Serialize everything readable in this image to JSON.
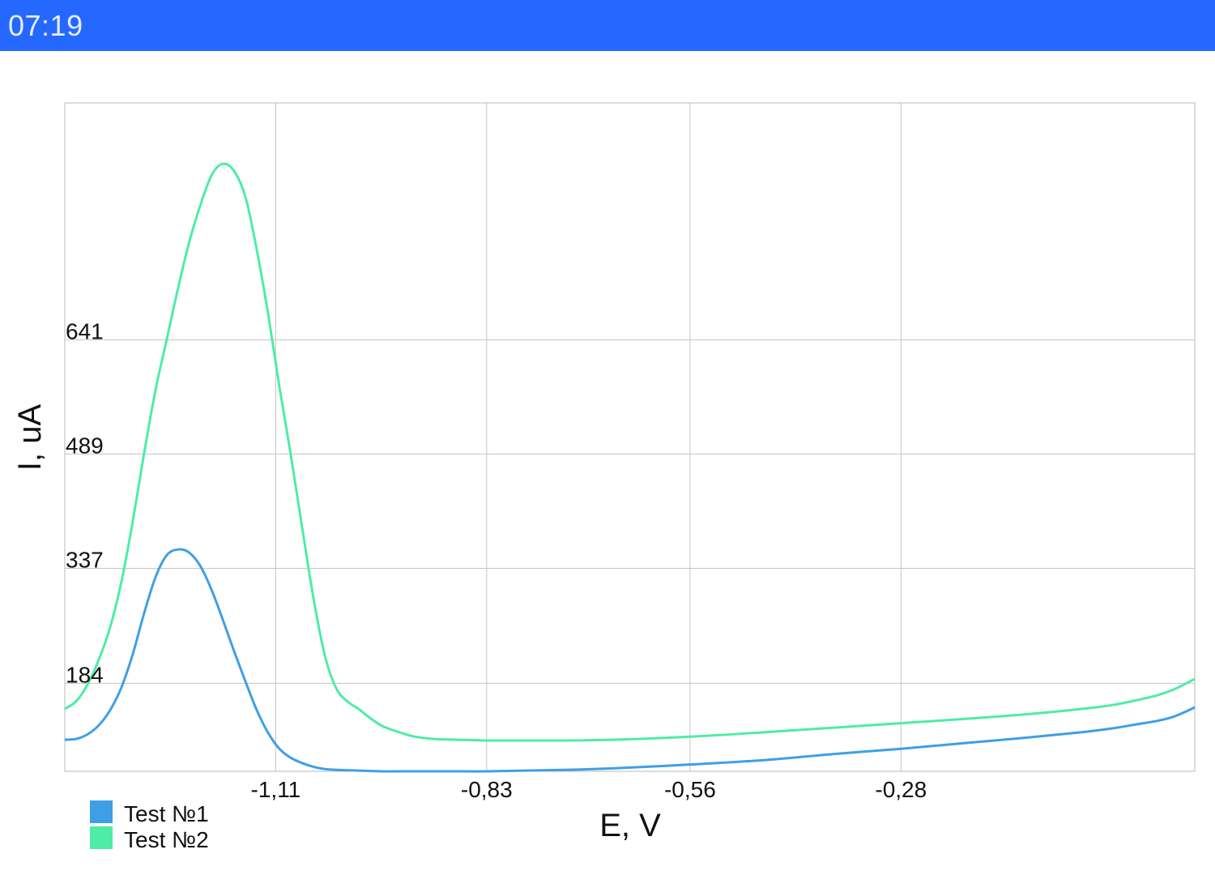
{
  "status_bar": {
    "time": "07:19",
    "color": "#2468ff"
  },
  "chart_data": {
    "type": "line",
    "title": "",
    "xlabel": "E, V",
    "ylabel": "I, uA",
    "xlim": [
      -1.39,
      0.11
    ],
    "ylim": [
      67,
      956
    ],
    "x_ticks": [
      "-1,11",
      "-0,83",
      "-0,56",
      "-0,28"
    ],
    "x_tick_values": [
      -1.11,
      -0.83,
      -0.56,
      -0.28
    ],
    "y_ticks": [
      "184",
      "337",
      "489",
      "641"
    ],
    "y_tick_values": [
      184,
      337,
      489,
      641
    ],
    "grid": true,
    "legend_position": "bottom-left",
    "series": [
      {
        "name": "Test №1",
        "color": "#3f9fe6",
        "x": [
          -1.39,
          -1.375,
          -1.36,
          -1.345,
          -1.33,
          -1.315,
          -1.3,
          -1.285,
          -1.27,
          -1.255,
          -1.24,
          -1.225,
          -1.21,
          -1.195,
          -1.18,
          -1.165,
          -1.15,
          -1.135,
          -1.12,
          -1.105,
          -1.09,
          -1.075,
          -1.06,
          -1.045,
          -1.03,
          -1.0,
          -0.97,
          -0.93,
          -0.88,
          -0.83,
          -0.78,
          -0.72,
          -0.66,
          -0.56,
          -0.46,
          -0.37,
          -0.28,
          -0.19,
          -0.1,
          -0.04,
          0.0,
          0.03,
          0.06,
          0.08,
          0.095,
          0.11
        ],
        "y": [
          109,
          110,
          116,
          128,
          148,
          178,
          222,
          276,
          324,
          354,
          362,
          358,
          340,
          308,
          268,
          226,
          186,
          148,
          118,
          97,
          85,
          78,
          73,
          70,
          69,
          68,
          67,
          67,
          67,
          67,
          68,
          69,
          71,
          76,
          82,
          90,
          97,
          105,
          113,
          119,
          124,
          129,
          134,
          139,
          145,
          152
        ]
      },
      {
        "name": "Test №2",
        "color": "#4eeca6",
        "x": [
          -1.39,
          -1.375,
          -1.36,
          -1.345,
          -1.33,
          -1.315,
          -1.3,
          -1.285,
          -1.27,
          -1.255,
          -1.24,
          -1.225,
          -1.21,
          -1.195,
          -1.18,
          -1.165,
          -1.15,
          -1.135,
          -1.12,
          -1.105,
          -1.09,
          -1.075,
          -1.06,
          -1.045,
          -1.03,
          -1.015,
          -1.0,
          -0.985,
          -0.97,
          -0.955,
          -0.94,
          -0.925,
          -0.9,
          -0.87,
          -0.83,
          -0.78,
          -0.73,
          -0.66,
          -0.56,
          -0.46,
          -0.37,
          -0.28,
          -0.19,
          -0.1,
          -0.04,
          0.0,
          0.03,
          0.06,
          0.08,
          0.095,
          0.11
        ],
        "y": [
          150,
          160,
          182,
          215,
          258,
          318,
          398,
          488,
          572,
          640,
          708,
          770,
          820,
          860,
          875,
          865,
          830,
          760,
          675,
          578,
          488,
          392,
          298,
          222,
          178,
          160,
          150,
          138,
          128,
          122,
          117,
          113,
          110,
          109,
          108,
          108,
          108,
          109,
          113,
          119,
          125,
          131,
          137,
          144,
          150,
          155,
          161,
          168,
          175,
          182,
          190
        ]
      }
    ]
  }
}
